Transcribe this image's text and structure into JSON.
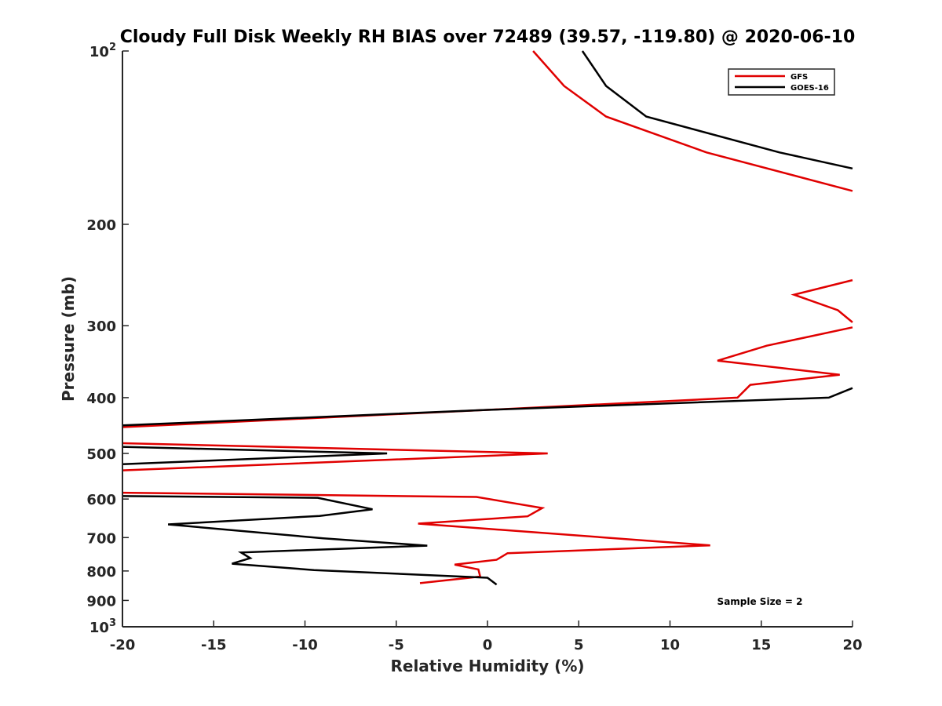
{
  "chart_data": {
    "type": "line",
    "title": "Cloudy Full Disk Weekly RH BIAS over 72489 (39.57, -119.80) @ 2020-06-10",
    "xlabel": "Relative Humidity (%)",
    "ylabel": "Pressure (mb)",
    "xlim": [
      -20,
      20
    ],
    "ylim": [
      100,
      1000
    ],
    "y_scale": "log",
    "y_reversed": true,
    "grid": false,
    "legend_position": "top-right",
    "x_ticks": [
      {
        "value": -20,
        "label": "-20"
      },
      {
        "value": -15,
        "label": "-15"
      },
      {
        "value": -10,
        "label": "-10"
      },
      {
        "value": -5,
        "label": "-5"
      },
      {
        "value": 0,
        "label": "0"
      },
      {
        "value": 5,
        "label": "5"
      },
      {
        "value": 10,
        "label": "10"
      },
      {
        "value": 15,
        "label": "15"
      },
      {
        "value": 20,
        "label": "20"
      }
    ],
    "y_ticks": [
      {
        "value": 100,
        "base": "10",
        "exp": "2"
      },
      {
        "value": 200,
        "base": "200",
        "exp": ""
      },
      {
        "value": 300,
        "base": "300",
        "exp": ""
      },
      {
        "value": 400,
        "base": "400",
        "exp": ""
      },
      {
        "value": 500,
        "base": "500",
        "exp": ""
      },
      {
        "value": 600,
        "base": "600",
        "exp": ""
      },
      {
        "value": 700,
        "base": "700",
        "exp": ""
      },
      {
        "value": 800,
        "base": "800",
        "exp": ""
      },
      {
        "value": 900,
        "base": "900",
        "exp": ""
      },
      {
        "value": 1000,
        "base": "10",
        "exp": "3"
      }
    ],
    "annotation": "Sample Size = 2",
    "series": [
      {
        "name": "GFS",
        "color": "#e00000",
        "points": [
          [
            2.5,
            100
          ],
          [
            4.2,
            115
          ],
          [
            6.5,
            130
          ],
          [
            12,
            150
          ],
          [
            20,
            175
          ],
          [
            null,
            null
          ],
          [
            20,
            250
          ],
          [
            16.8,
            265
          ],
          [
            19.2,
            282
          ],
          [
            20,
            296
          ],
          [
            null,
            null
          ],
          [
            20,
            302
          ],
          [
            15.3,
            325
          ],
          [
            12.6,
            345
          ],
          [
            19.3,
            365
          ],
          [
            14.4,
            380
          ],
          [
            13.7,
            400
          ],
          [
            0,
            420
          ],
          [
            -20,
            450
          ],
          [
            null,
            null
          ],
          [
            -20,
            480
          ],
          [
            3.3,
            500
          ],
          [
            -20,
            535
          ],
          [
            null,
            null
          ],
          [
            -20,
            585
          ],
          [
            -0.6,
            595
          ],
          [
            3,
            622
          ],
          [
            2.2,
            643
          ],
          [
            -3.8,
            662
          ],
          [
            12.2,
            722
          ],
          [
            1.1,
            745
          ],
          [
            0.5,
            765
          ],
          [
            -1.8,
            780
          ],
          [
            -0.5,
            795
          ],
          [
            -0.4,
            818
          ],
          [
            -3.7,
            840
          ]
        ]
      },
      {
        "name": "GOES-16",
        "color": "#000000",
        "points": [
          [
            5.2,
            100
          ],
          [
            6.5,
            115
          ],
          [
            8.7,
            130
          ],
          [
            16,
            150
          ],
          [
            20,
            160
          ],
          [
            null,
            null
          ],
          [
            20,
            385
          ],
          [
            18.7,
            400
          ],
          [
            0,
            420
          ],
          [
            -20,
            447
          ],
          [
            null,
            null
          ],
          [
            -20,
            487
          ],
          [
            -5.5,
            500
          ],
          [
            -20,
            522
          ],
          [
            null,
            null
          ],
          [
            -20,
            593
          ],
          [
            -9.3,
            597
          ],
          [
            -6.3,
            625
          ],
          [
            -9.2,
            642
          ],
          [
            -17.5,
            664
          ],
          [
            -9,
            702
          ],
          [
            -3.3,
            723
          ],
          [
            -13.5,
            743
          ],
          [
            -13,
            760
          ],
          [
            -14,
            777
          ],
          [
            -9.5,
            797
          ],
          [
            0,
            822
          ],
          [
            0.5,
            845
          ]
        ]
      }
    ]
  }
}
